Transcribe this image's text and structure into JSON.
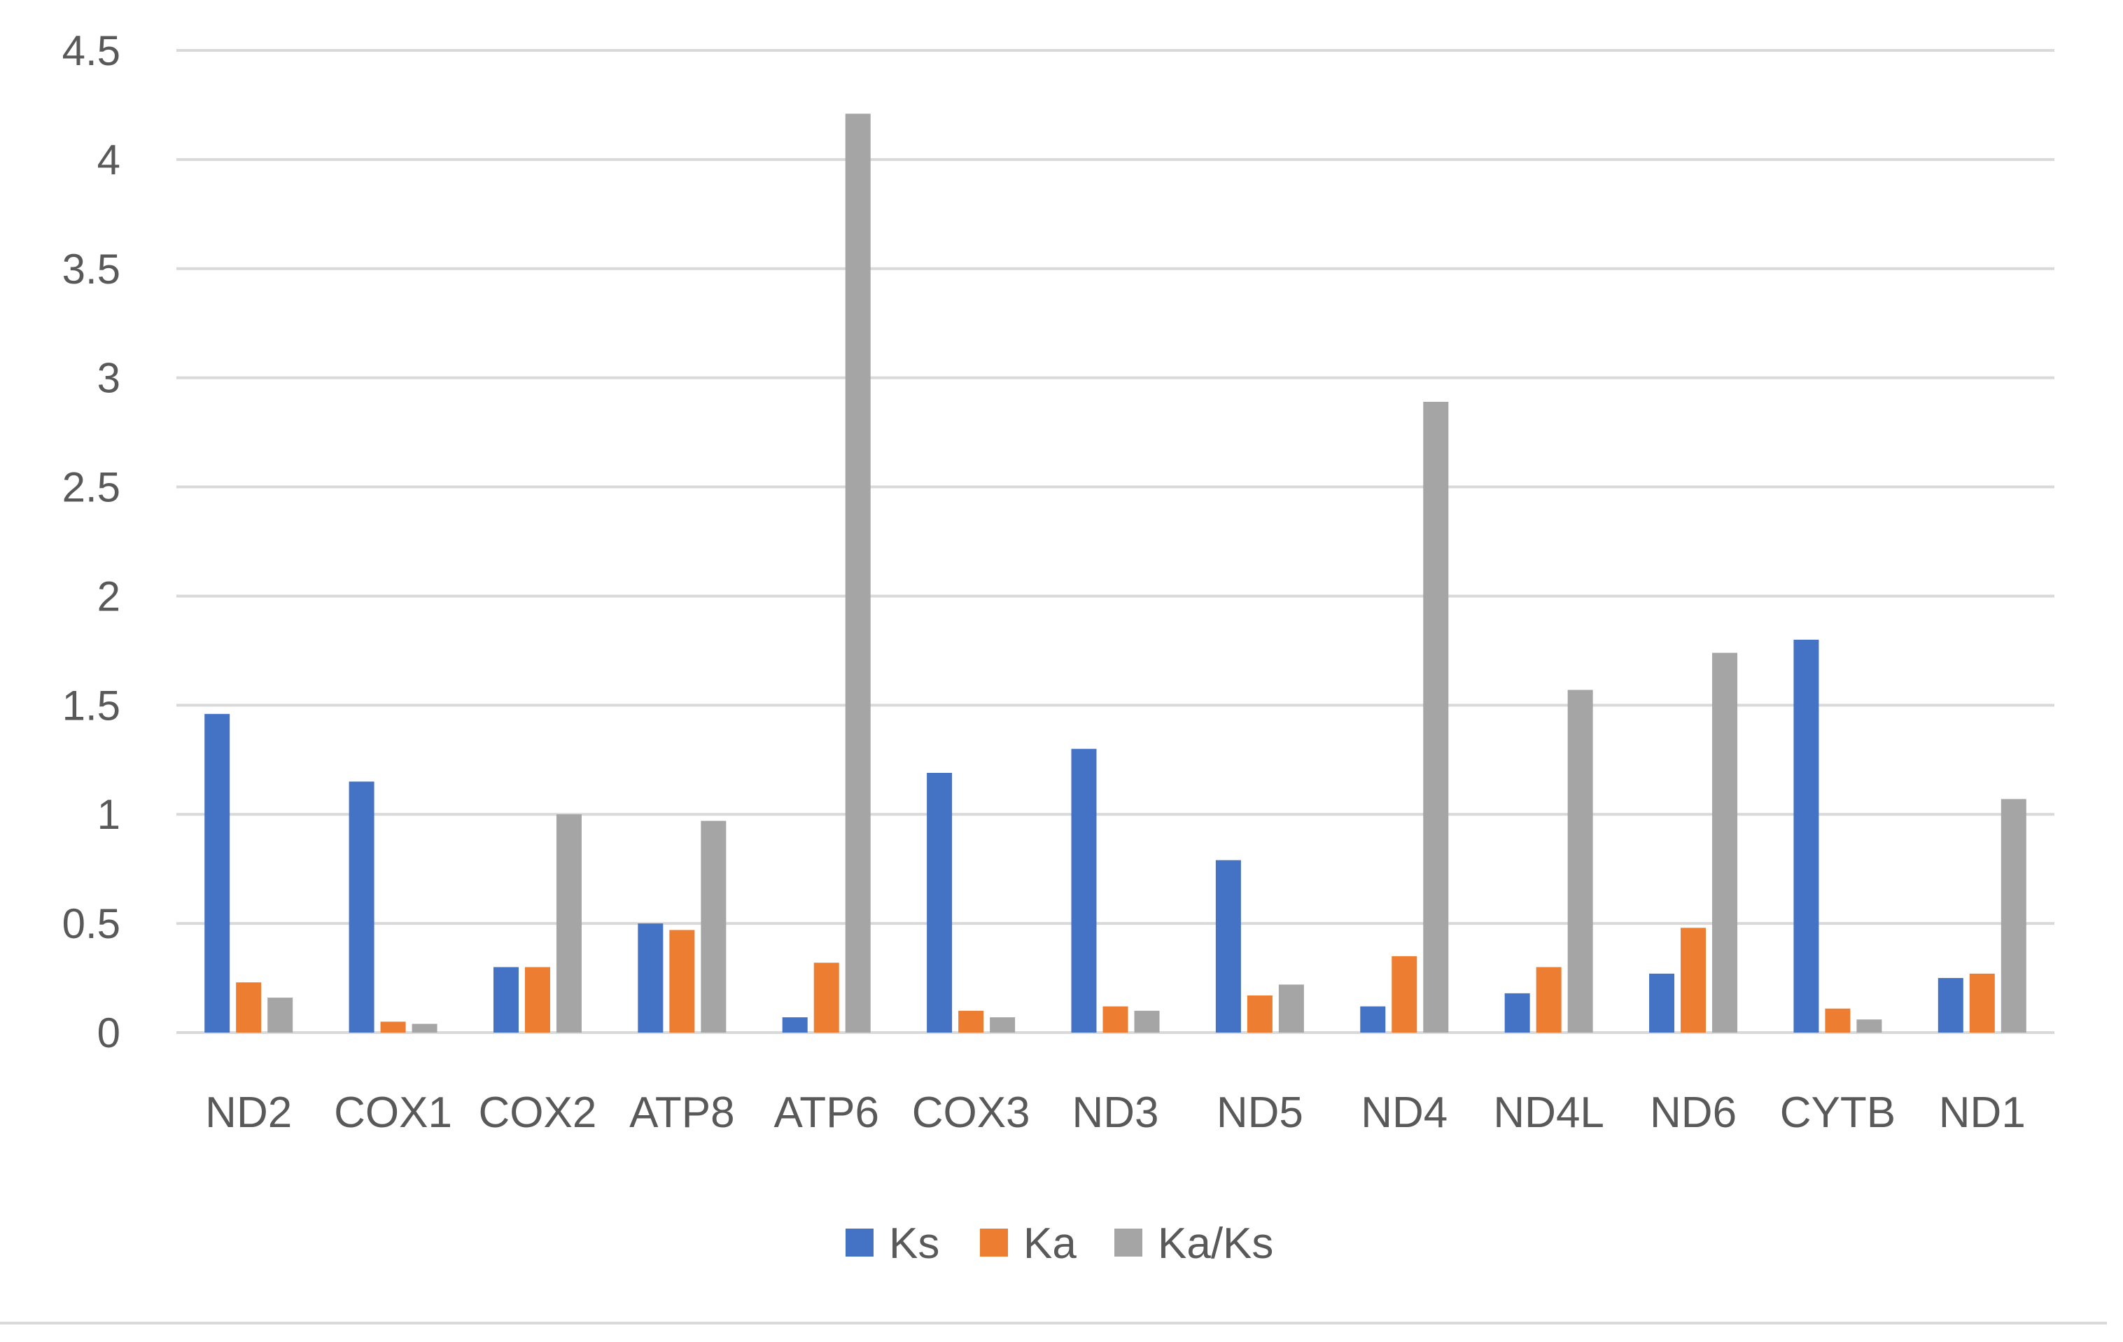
{
  "chart_data": {
    "type": "bar",
    "title": "",
    "xlabel": "",
    "ylabel": "",
    "ylim": [
      0,
      4.5
    ],
    "yticks": [
      0,
      0.5,
      1,
      1.5,
      2,
      2.5,
      3,
      3.5,
      4,
      4.5
    ],
    "ytick_labels": [
      "0",
      "0.5",
      "1",
      "1.5",
      "2",
      "2.5",
      "3",
      "3.5",
      "4",
      "4.5"
    ],
    "grid": true,
    "legend_position": "bottom-center",
    "categories": [
      "ND2",
      "COX1",
      "COX2",
      "ATP8",
      "ATP6",
      "COX3",
      "ND3",
      "ND5",
      "ND4",
      "ND4L",
      "ND6",
      "CYTB",
      "ND1"
    ],
    "series": [
      {
        "name": "Ks",
        "color": "#4472C4",
        "values": [
          1.46,
          1.15,
          0.3,
          0.5,
          0.07,
          1.19,
          1.3,
          0.79,
          0.12,
          0.18,
          0.27,
          1.8,
          0.25
        ]
      },
      {
        "name": "Ka",
        "color": "#ED7D31",
        "values": [
          0.23,
          0.05,
          0.3,
          0.47,
          0.32,
          0.1,
          0.12,
          0.17,
          0.35,
          0.3,
          0.48,
          0.11,
          0.27
        ]
      },
      {
        "name": "Ka/Ks",
        "color": "#A5A5A5",
        "values": [
          0.16,
          0.04,
          1.0,
          0.97,
          4.21,
          0.07,
          0.1,
          0.22,
          2.89,
          1.57,
          1.74,
          0.06,
          1.07
        ]
      }
    ]
  }
}
